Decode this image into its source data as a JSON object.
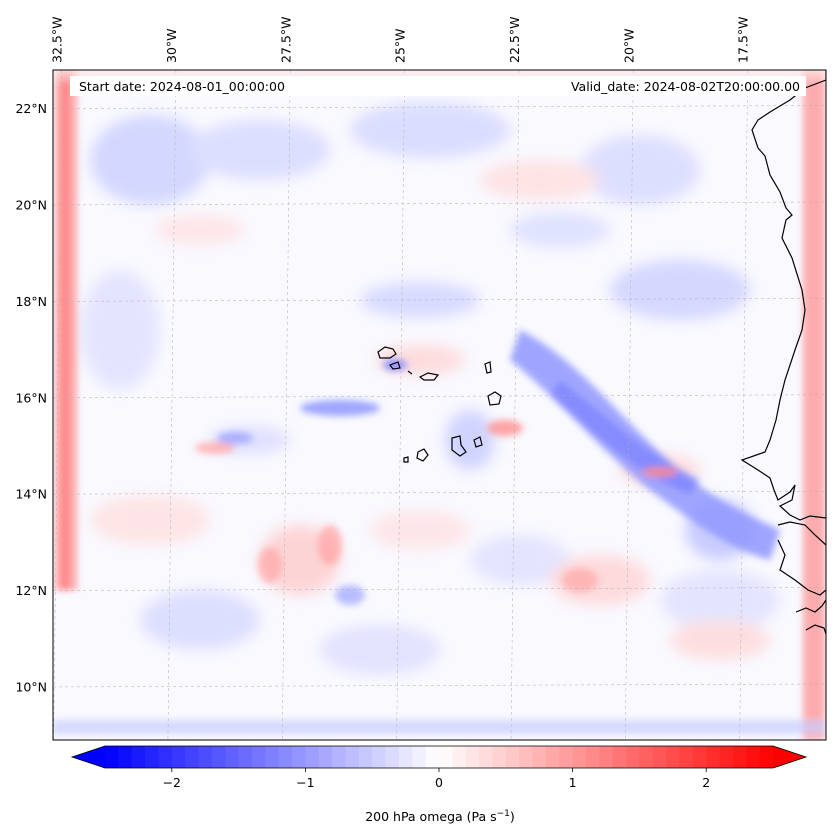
{
  "map": {
    "start_date": "Start date: 2024-08-01_00:00:00",
    "valid_date": "Valid_date: 2024-08-02T20:00:00.00",
    "lon_labels": [
      "32.5°W",
      "30°W",
      "27.5°W",
      "25°W",
      "22.5°W",
      "20°W",
      "17.5°W"
    ],
    "lon_values": [
      -32.5,
      -30,
      -27.5,
      -25,
      -22.5,
      -20,
      -17.5
    ],
    "lat_labels": [
      "22°N",
      "20°N",
      "18°N",
      "16°N",
      "14°N",
      "12°N",
      "10°N"
    ],
    "lat_values": [
      22,
      20,
      18,
      16,
      14,
      12,
      10
    ],
    "extent": {
      "lon_min": -32.6,
      "lon_max": -15.7,
      "lat_min": 8.9,
      "lat_max": 22.8
    },
    "gridlines": true,
    "colors": {
      "negative": "#0000ff",
      "positive": "#ff0000",
      "neutral": "#ffffff",
      "coastline": "#000000"
    }
  },
  "colorbar": {
    "label": "200 hPa omega (Pa s",
    "label_sup": "−1",
    "label_end": ")",
    "tick_labels": [
      "−2",
      "−1",
      "0",
      "1",
      "2"
    ],
    "tick_values": [
      -2,
      -1,
      0,
      1,
      2
    ],
    "vmin": -2.5,
    "vmax": 2.5,
    "extend": "both",
    "cmap": "bwr"
  }
}
